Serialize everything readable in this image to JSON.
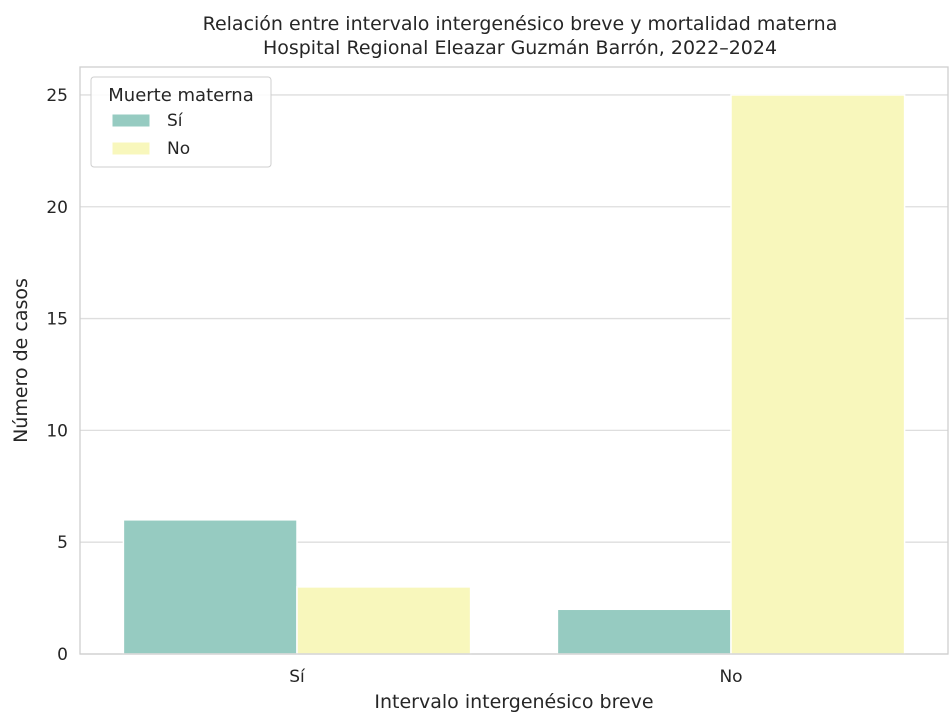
{
  "chart_data": {
    "type": "bar",
    "title": "Relación entre intervalo intergenésico breve y mortalidad materna",
    "subtitle": "Hospital Regional Eleazar Guzmán Barrón, 2022–2024",
    "xlabel": "Intervalo intergenésico breve",
    "ylabel": "Número de casos",
    "categories": [
      "Sí",
      "No"
    ],
    "series": [
      {
        "name": "Sí",
        "values": [
          6,
          2
        ],
        "color": "#96cbc1"
      },
      {
        "name": "No",
        "values": [
          3,
          25
        ],
        "color": "#f8f7bc"
      }
    ],
    "ylim": [
      0,
      26.25
    ],
    "yticks": [
      0,
      5,
      10,
      15,
      20,
      25
    ],
    "grid": "y",
    "legend": {
      "title": "Muerte materna",
      "placement": "top-left"
    }
  }
}
